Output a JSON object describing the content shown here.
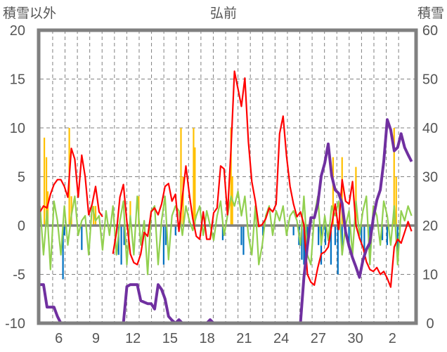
{
  "chart_data": {
    "type": "line",
    "title": "弘前",
    "ylabel_left": "積雪以外",
    "ylabel_right": "積雪",
    "ylim_left": [
      -10,
      20
    ],
    "ylim_right": [
      0,
      60
    ],
    "yticks_left": [
      "20",
      "15",
      "10",
      "5",
      "0",
      "-5",
      "-10"
    ],
    "yticks_right": [
      "60",
      "50",
      "40",
      "30",
      "20",
      "10",
      "0"
    ],
    "xlim_days": [
      4.48,
      34.8
    ],
    "xticks": [
      {
        "day": 6,
        "label": "6"
      },
      {
        "day": 9,
        "label": "9"
      },
      {
        "day": 12,
        "label": "12"
      },
      {
        "day": 15,
        "label": "15"
      },
      {
        "day": 18,
        "label": "18"
      },
      {
        "day": 21,
        "label": "21"
      },
      {
        "day": 24,
        "label": "24"
      },
      {
        "day": 27,
        "label": "27"
      },
      {
        "day": 30,
        "label": "30"
      },
      {
        "day": 33,
        "label": "2"
      }
    ],
    "grid": true,
    "series_start_day": 4.48,
    "series_step_days": 0.281,
    "series": [
      {
        "name": "red",
        "axis": "left",
        "color": "#ff0000",
        "values": [
          1.4,
          2.0,
          1.8,
          3.2,
          4.2,
          4.7,
          4.7,
          4.0,
          2.9,
          7.9,
          6.8,
          2.9,
          7.2,
          5.0,
          1.1,
          2.2,
          4.0,
          1.4,
          0.9,
          null,
          null,
          -2.9,
          -0.7,
          2.9,
          4.2,
          0.4,
          -2.9,
          -3.8,
          -4.0,
          -2.9,
          -0.7,
          -1.1,
          1.4,
          1.8,
          1.1,
          2.2,
          4.0,
          4.3,
          2.5,
          3.2,
          -0.6,
          2.9,
          6.1,
          3.2,
          0.7,
          -1.1,
          -1.4,
          1.4,
          -1.4,
          -1.4,
          1.3,
          1.8,
          6.1,
          5.8,
          1.1,
          7.9,
          15.8,
          14.0,
          12.2,
          15.1,
          8.6,
          4.5,
          2.5,
          -0.1,
          0.1,
          0.7,
          1.8,
          1.4,
          2.2,
          9.4,
          11.2,
          7.1,
          4.0,
          2.2,
          0.9,
          1.4,
          0.1,
          -5.0,
          -5.8,
          -6.1,
          -4.3,
          -2.9,
          -2.7,
          -2.2,
          0.0,
          2.2,
          -0.4,
          4.7,
          2.5,
          2.2,
          4.5,
          0.0,
          -1.3,
          -2.2,
          -3.7,
          -4.5,
          -4.7,
          -4.3,
          -5.0,
          -4.7,
          -5.4,
          -6.3,
          -2.2,
          -1.4,
          -1.8,
          -0.7,
          0.4,
          -0.6
        ]
      },
      {
        "name": "green",
        "axis": "left",
        "color": "#92d050",
        "values": [
          2,
          -3,
          1.5,
          -4.5,
          2.5,
          0.5,
          -3,
          2,
          -2,
          1,
          3,
          -1,
          0.5,
          1,
          -3,
          2,
          0.5,
          1,
          -2.5,
          1.5,
          -1,
          2,
          -3,
          0.5,
          2.5,
          -4,
          1,
          -3,
          3,
          -2,
          0.5,
          -5,
          1.5,
          2,
          -4,
          0.5,
          3,
          -3.5,
          1,
          2,
          1.5,
          -1,
          2,
          0.5,
          -0.5,
          1,
          2,
          -1,
          1.5,
          0,
          -1.5,
          1,
          2.5,
          -1,
          1,
          3,
          2,
          3.5,
          1,
          3,
          -1,
          -3,
          2,
          -4,
          -2,
          1,
          2,
          -1,
          1.5,
          0.5,
          2,
          -1,
          1,
          1.5,
          0.5,
          -2,
          3,
          -3,
          -4,
          1,
          3,
          -2,
          1,
          -1.5,
          2,
          1,
          2.5,
          -3,
          0,
          1.5,
          -3,
          2.5,
          -1,
          1.5,
          3,
          -4,
          2,
          1,
          -2,
          2.5,
          1,
          -2,
          2,
          -4,
          1.5,
          0.5,
          2,
          1
        ]
      },
      {
        "name": "purple",
        "axis": "right",
        "color": "#7030a0",
        "values": [
          7.9,
          7.9,
          3.3,
          3.3,
          3.3,
          1.4,
          0,
          0,
          0,
          0,
          0,
          0,
          0,
          0,
          0,
          0,
          0,
          0,
          0,
          0,
          0,
          0,
          0,
          0,
          0,
          7.5,
          7.9,
          7.9,
          7.9,
          4.6,
          4.3,
          4.0,
          4.0,
          2.9,
          7.9,
          6.9,
          5.0,
          1.4,
          0.6,
          0,
          0.7,
          0,
          0,
          0,
          0,
          0,
          0,
          0,
          0,
          0.7,
          0,
          0,
          0,
          0,
          0,
          0,
          0,
          0,
          0,
          0,
          0,
          0,
          0,
          0,
          0,
          0,
          0,
          0,
          0,
          0,
          0,
          0,
          0,
          0,
          0,
          0,
          9.4,
          15.8,
          21.6,
          21.6,
          24.5,
          30.2,
          32.8,
          36.7,
          30.2,
          27.3,
          26.6,
          24.5,
          18.7,
          15.8,
          13.4,
          11.5,
          9.4,
          12.9,
          15.1,
          16.5,
          21.6,
          25.2,
          27.3,
          33.1,
          41.7,
          39.6,
          35.3,
          36.0,
          38.8,
          36.0,
          34.5,
          33.1
        ]
      }
    ],
    "bars": [
      {
        "name": "yellow",
        "axis": "left",
        "color": "#ffc000",
        "points": [
          [
            4.82,
            9
          ],
          [
            4.99,
            7
          ],
          [
            5.1,
            3.5
          ],
          [
            6.84,
            10
          ],
          [
            7.01,
            3
          ],
          [
            8.81,
            2
          ],
          [
            8.97,
            2
          ],
          [
            11.78,
            2.5
          ],
          [
            12.46,
            3
          ],
          [
            15.88,
            10
          ],
          [
            16.05,
            5
          ],
          [
            16.9,
            10
          ],
          [
            17.01,
            8
          ],
          [
            19.93,
            10
          ],
          [
            20.04,
            5
          ],
          [
            28.19,
            7
          ],
          [
            28.92,
            7
          ],
          [
            30.04,
            6
          ],
          [
            33.13,
            10
          ],
          [
            33.3,
            5
          ]
        ]
      },
      {
        "name": "blue",
        "axis": "left",
        "color": "#0070c0",
        "points": [
          [
            6.33,
            -5.5
          ],
          [
            6.45,
            -1
          ],
          [
            7.85,
            -2.5
          ],
          [
            10.83,
            -3
          ],
          [
            11.05,
            -4
          ],
          [
            11.28,
            -2
          ],
          [
            14.48,
            -4
          ],
          [
            14.65,
            -2
          ],
          [
            15.44,
            -1
          ],
          [
            19.26,
            -1.5
          ],
          [
            20.77,
            -2
          ],
          [
            20.94,
            -3
          ],
          [
            22.51,
            -1
          ],
          [
            24.99,
            -1
          ],
          [
            25.43,
            -2
          ],
          [
            25.66,
            -3.5
          ],
          [
            25.83,
            -4
          ],
          [
            25.94,
            -5
          ],
          [
            26.11,
            -2
          ],
          [
            27.01,
            -2
          ],
          [
            27.23,
            -4
          ],
          [
            27.57,
            -2
          ],
          [
            28.02,
            -4
          ],
          [
            28.36,
            -2
          ],
          [
            28.58,
            -5
          ],
          [
            28.92,
            -3
          ],
          [
            29.48,
            -2
          ],
          [
            30.49,
            -2
          ],
          [
            30.72,
            -3
          ],
          [
            31.17,
            -4
          ],
          [
            32.18,
            -1.5
          ],
          [
            32.57,
            -2
          ],
          [
            33.41,
            -3
          ]
        ]
      }
    ]
  }
}
